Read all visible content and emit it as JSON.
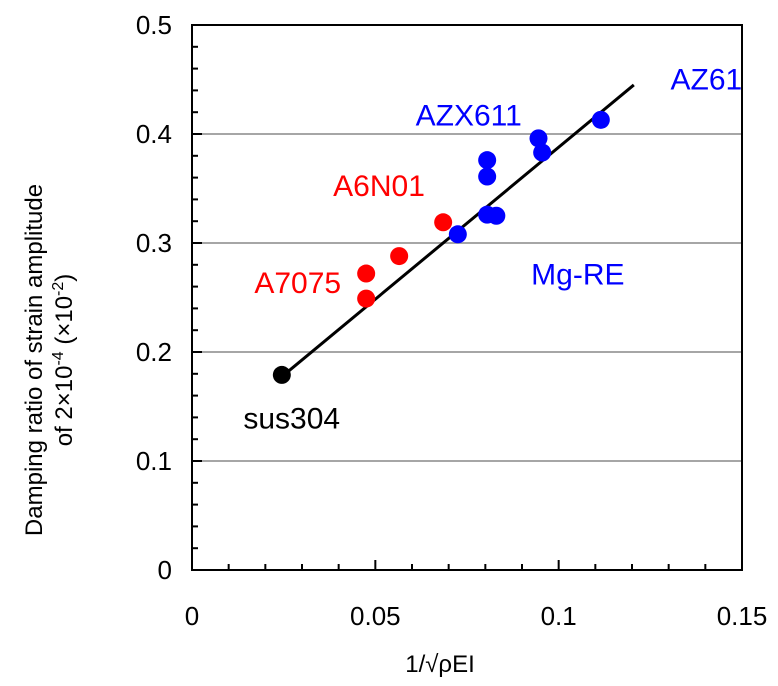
{
  "chart_data": {
    "type": "scatter",
    "xlabel": "1/√ρEI",
    "ylabel_line1": "Damping ratio of strain amplitude",
    "ylabel_line2_prefix": "of 2×10",
    "ylabel_line2_sup1": "-4",
    "ylabel_line2_mid": " (×10",
    "ylabel_line2_sup2": "-2",
    "ylabel_line2_suffix": ")",
    "xlim": [
      0,
      0.15
    ],
    "ylim": [
      0,
      0.5
    ],
    "x_ticks": [
      0,
      0.05,
      0.1,
      0.15
    ],
    "x_tick_labels": [
      "0",
      "0.05",
      "0.1",
      "0.15"
    ],
    "y_ticks": [
      0,
      0.1,
      0.2,
      0.3,
      0.4,
      0.5
    ],
    "y_tick_labels": [
      "0",
      "0.1",
      "0.2",
      "0.3",
      "0.4",
      "0.5"
    ],
    "grid": "horizontal",
    "colors": {
      "steel": "#000000",
      "aluminum": "#ff0000",
      "magnesium": "#0000ff",
      "fit": "#000000",
      "grid": "#a6a6a6"
    },
    "series": [
      {
        "group": "steel",
        "color": "#000000",
        "points": [
          [
            0.0245,
            0.179
          ]
        ]
      },
      {
        "group": "aluminum",
        "color": "#ff0000",
        "points": [
          [
            0.0475,
            0.272
          ],
          [
            0.0475,
            0.249
          ],
          [
            0.0565,
            0.288
          ],
          [
            0.0685,
            0.319
          ]
        ]
      },
      {
        "group": "magnesium",
        "color": "#0000ff",
        "points": [
          [
            0.0725,
            0.308
          ],
          [
            0.0805,
            0.376
          ],
          [
            0.0805,
            0.361
          ],
          [
            0.0805,
            0.326
          ],
          [
            0.083,
            0.325
          ],
          [
            0.0945,
            0.396
          ],
          [
            0.0955,
            0.383
          ],
          [
            0.1115,
            0.413
          ]
        ]
      }
    ],
    "fit_line": {
      "x": [
        0.024,
        0.1205
      ],
      "y": [
        0.176,
        0.445
      ]
    },
    "annotations": [
      {
        "text": "sus304",
        "x": 0.014,
        "y": 0.13,
        "color": "#000000"
      },
      {
        "text": "A7075",
        "x": 0.017,
        "y": 0.254,
        "color": "#ff0000"
      },
      {
        "text": "A6N01",
        "x": 0.0385,
        "y": 0.343,
        "color": "#ff0000"
      },
      {
        "text": "AZX611",
        "x": 0.061,
        "y": 0.408,
        "color": "#0000ff"
      },
      {
        "text": "AZ61",
        "x": 0.1305,
        "y": 0.441,
        "color": "#0000ff"
      },
      {
        "text": "Mg-RE",
        "x": 0.0925,
        "y": 0.262,
        "color": "#0000ff"
      }
    ]
  }
}
